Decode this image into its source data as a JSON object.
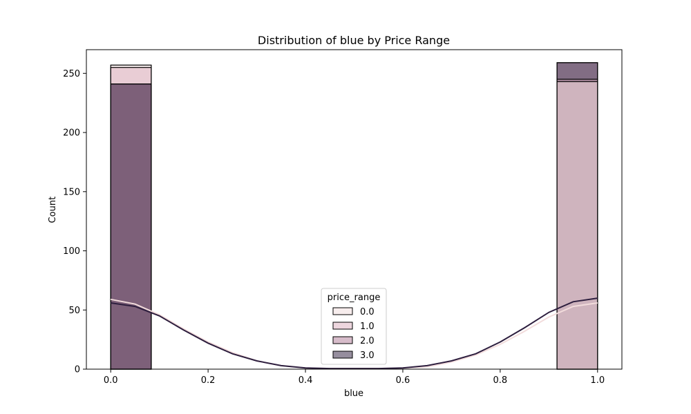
{
  "chart_data": {
    "type": "histogram",
    "title": "Distribution of blue by Price Range",
    "xlabel": "blue",
    "ylabel": "Count",
    "xlim": [
      -0.05,
      1.05
    ],
    "ylim": [
      0,
      270
    ],
    "xticks": [
      "0.0",
      "0.2",
      "0.4",
      "0.6",
      "0.8",
      "1.0"
    ],
    "yticks": [
      "0",
      "50",
      "100",
      "150",
      "200",
      "250"
    ],
    "bins": [
      {
        "x0": 0.0,
        "x1": 0.0833
      },
      {
        "x0": 0.9167,
        "x1": 1.0
      }
    ],
    "legend": {
      "title": "price_range",
      "placement": "lower-center"
    },
    "series": [
      {
        "name": "0.0",
        "values": [
          257,
          243
        ],
        "color": "#f0dcdc",
        "kde_color": "#f2dcdc"
      },
      {
        "name": "1.0",
        "values": [
          255,
          245
        ],
        "color": "#dbaebd",
        "kde_color": "#e0b4c0"
      },
      {
        "name": "2.0",
        "values": [
          241,
          259
        ],
        "color": "#b07a95",
        "kde_color": "#9a6c88"
      },
      {
        "name": "3.0",
        "values": [
          241,
          259
        ],
        "color": "#2d1e3e",
        "kde_color": "#2d1e3e"
      }
    ],
    "kde": {
      "x": [
        0.0,
        0.05,
        0.1,
        0.15,
        0.2,
        0.25,
        0.3,
        0.35,
        0.4,
        0.45,
        0.5,
        0.55,
        0.6,
        0.65,
        0.7,
        0.75,
        0.8,
        0.85,
        0.9,
        0.95,
        1.0
      ],
      "series": [
        {
          "name": "0.0",
          "values": [
            59,
            55,
            46,
            34,
            23,
            14,
            7,
            3,
            1,
            0.5,
            0.5,
            0.5,
            1,
            2,
            6,
            12,
            21,
            32,
            44,
            53,
            56
          ]
        },
        {
          "name": "3.0",
          "values": [
            56,
            53,
            45,
            33,
            22,
            13,
            7,
            3,
            1,
            0.5,
            0.5,
            0.5,
            1,
            3,
            7,
            13,
            23,
            35,
            48,
            57,
            60
          ]
        }
      ]
    },
    "grid": false
  }
}
